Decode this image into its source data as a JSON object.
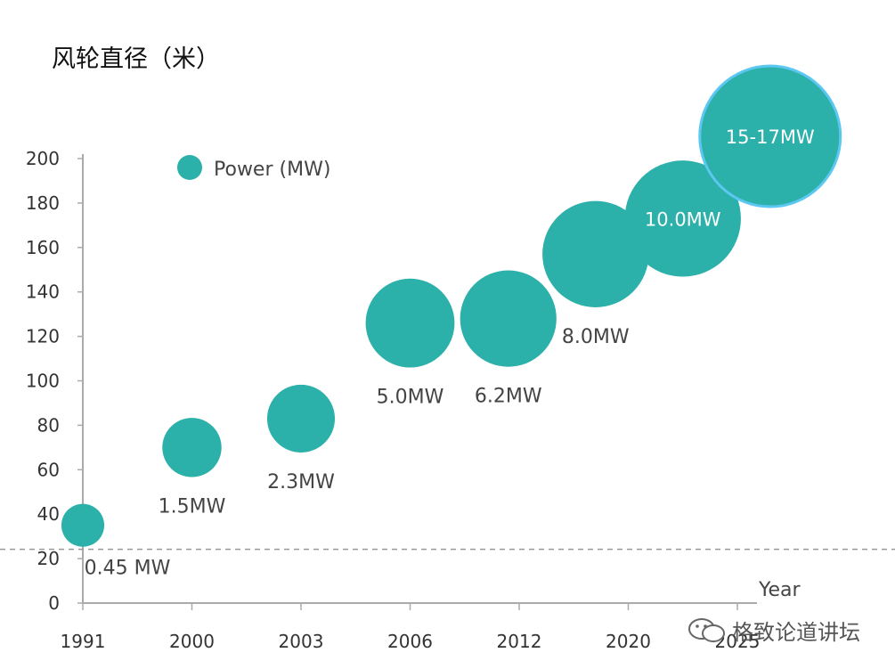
{
  "title": "风轮直径（米）",
  "watermark": "格致论道讲坛",
  "chart_data": {
    "type": "bubble",
    "title": "风轮直径（米）",
    "xlabel": "Year",
    "ylabel": "",
    "ylim": [
      0,
      200
    ],
    "yticks": [
      0,
      20,
      40,
      60,
      80,
      100,
      120,
      140,
      160,
      180,
      200
    ],
    "xticks": [
      "1991",
      "2000",
      "2003",
      "2006",
      "2012",
      "2020",
      "2025"
    ],
    "legend": {
      "label": "Power (MW)",
      "position": "top-left"
    },
    "reference_line": {
      "y": 25,
      "style": "dashed"
    },
    "points": [
      {
        "x_pos": 0.0,
        "year": "1991",
        "y": 35,
        "power": 0.45,
        "label": "0.45 MW",
        "label_pos": "below"
      },
      {
        "x_pos": 1.0,
        "year": "2000",
        "y": 70,
        "power": 1.5,
        "label": "1.5MW",
        "label_pos": "below"
      },
      {
        "x_pos": 2.0,
        "year": "2003",
        "y": 83,
        "power": 2.3,
        "label": "2.3MW",
        "label_pos": "below"
      },
      {
        "x_pos": 3.0,
        "year": "2006",
        "y": 126,
        "power": 5.0,
        "label": "5.0MW",
        "label_pos": "below"
      },
      {
        "x_pos": 3.9,
        "year": "2012",
        "y": 128,
        "power": 6.2,
        "label": "6.2MW",
        "label_pos": "below"
      },
      {
        "x_pos": 4.7,
        "year": "2020",
        "y": 157,
        "power": 8.0,
        "label": "8.0MW",
        "label_pos": "below"
      },
      {
        "x_pos": 5.5,
        "year": "2020-2025",
        "y": 173,
        "power": 10.0,
        "label": "10.0MW",
        "label_pos": "inside"
      },
      {
        "x_pos": 6.3,
        "year": "2025",
        "y": 210,
        "power": 16.0,
        "label": "15-17MW",
        "label_pos": "inside"
      }
    ],
    "colors": {
      "bubble": "#2bb0aa",
      "highlight_stroke": "#5cc8f2",
      "axis": "#aaaaaa"
    }
  }
}
